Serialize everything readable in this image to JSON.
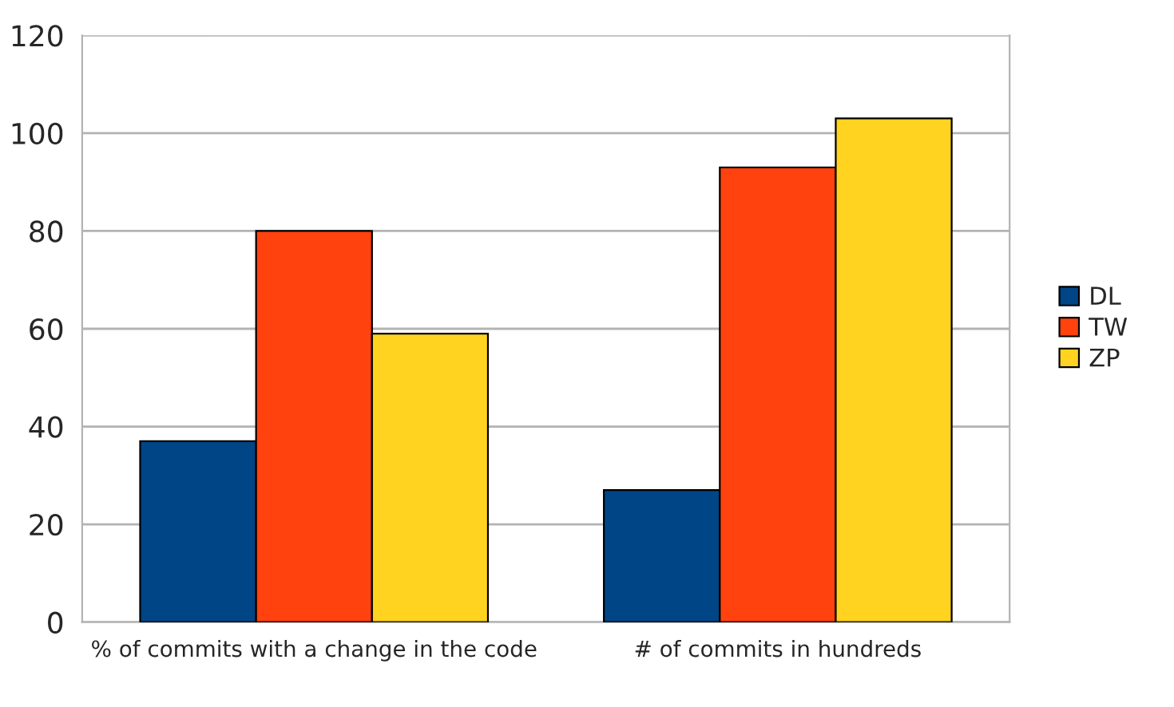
{
  "chart_data": {
    "type": "bar",
    "categories": [
      "% of commits with a change in the code",
      "# of commits in hundreds"
    ],
    "series": [
      {
        "name": "DL",
        "color": "#004586",
        "values": [
          37,
          27
        ]
      },
      {
        "name": "TW",
        "color": "#ff420e",
        "values": [
          80,
          93
        ]
      },
      {
        "name": "ZP",
        "color": "#ffd320",
        "values": [
          59,
          103
        ]
      }
    ],
    "ylim": [
      0,
      120
    ],
    "yticks": [
      0,
      20,
      40,
      60,
      80,
      100,
      120
    ],
    "grid": "y",
    "legend": "right"
  }
}
